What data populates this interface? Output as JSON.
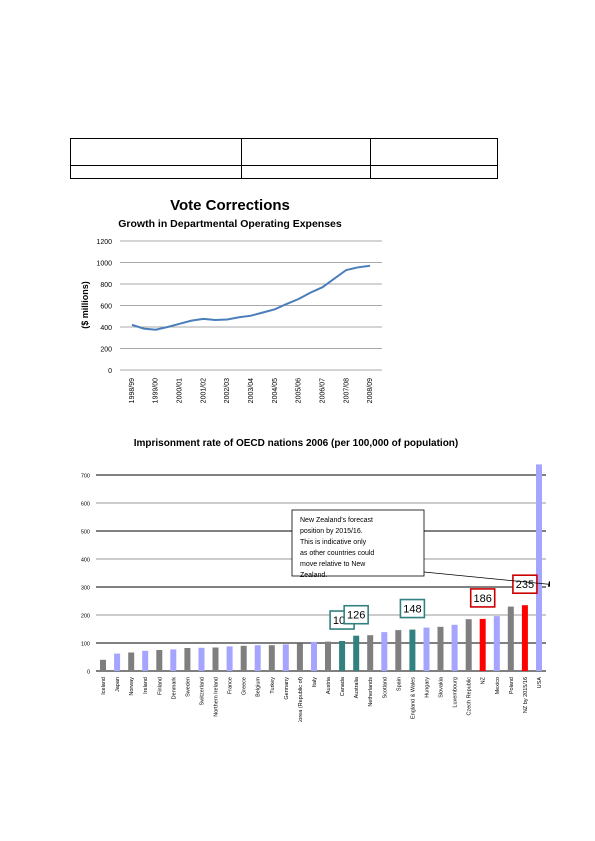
{
  "chart_data": [
    {
      "type": "line",
      "title": "Vote Corrections",
      "subtitle": "Growth in Departmental Operating Expenses",
      "xlabel": "",
      "ylabel": "($ millions)",
      "ylim": [
        0,
        1200
      ],
      "yticks": [
        0,
        200,
        400,
        600,
        800,
        1000,
        1200
      ],
      "grid": true,
      "categories": [
        "1998/99",
        "1999/00",
        "2000/01",
        "2001/02",
        "2002/03",
        "2003/04",
        "2004/05",
        "2005/06",
        "2006/07",
        "2007/08",
        "2008/09"
      ],
      "series": [
        {
          "name": "",
          "x": [
            0,
            0.5,
            1,
            1.5,
            2,
            2.5,
            3,
            3.5,
            4,
            4.5,
            5,
            5.5,
            6,
            6.5,
            7,
            7.5,
            8,
            8.5,
            9,
            9.5,
            10
          ],
          "values": [
            420,
            385,
            375,
            400,
            430,
            460,
            475,
            465,
            470,
            490,
            505,
            535,
            565,
            615,
            660,
            720,
            770,
            850,
            930,
            955,
            970
          ],
          "color": "#4a7ebb"
        }
      ]
    },
    {
      "type": "bar",
      "title": "Imprisonment rate of OECD nations 2006 (per 100,000 of population)",
      "ylim": [
        0,
        750
      ],
      "yticks": [
        0,
        100,
        200,
        300,
        400,
        500,
        600,
        700
      ],
      "grid": true,
      "categories": [
        "Iceland",
        "Japan",
        "Norway",
        "Ireland",
        "Finland",
        "Denmark",
        "Sweden",
        "Switzerland",
        "Northern Ireland",
        "France",
        "Greece",
        "Belgium",
        "Turkey",
        "Germany",
        "Korea (Republic of)",
        "Italy",
        "Austria",
        "Canada",
        "Australia",
        "Netherlands",
        "Scotland",
        "Spain",
        "England & Wales",
        "Hungary",
        "Slovakia",
        "Luxembourg",
        "Czech Republic",
        "NZ",
        "Mexico",
        "Poland",
        "NZ by 2015/16",
        "USA"
      ],
      "values": [
        40,
        62,
        66,
        72,
        75,
        77,
        82,
        83,
        84,
        88,
        90,
        92,
        92,
        95,
        97,
        104,
        105,
        107,
        126,
        128,
        139,
        146,
        148,
        155,
        158,
        165,
        185,
        186,
        196,
        230,
        235,
        738
      ],
      "colors": [
        "#7f7f7f",
        "#a5a5ff",
        "#7f7f7f",
        "#a5a5ff",
        "#7f7f7f",
        "#a5a5ff",
        "#7f7f7f",
        "#a5a5ff",
        "#7f7f7f",
        "#a5a5ff",
        "#7f7f7f",
        "#a5a5ff",
        "#7f7f7f",
        "#a5a5ff",
        "#7f7f7f",
        "#a5a5ff",
        "#7f7f7f",
        "#338080",
        "#338080",
        "#7f7f7f",
        "#a5a5ff",
        "#7f7f7f",
        "#338080",
        "#a5a5ff",
        "#7f7f7f",
        "#a5a5ff",
        "#7f7f7f",
        "#ff0000",
        "#a5a5ff",
        "#7f7f7f",
        "#ff0000",
        "#a5a5ff"
      ],
      "highlight_labels": [
        {
          "category": "Canada",
          "label": "107",
          "border": "#338080"
        },
        {
          "category": "Australia",
          "label": "126",
          "border": "#338080"
        },
        {
          "category": "England & Wales",
          "label": "148",
          "border": "#338080"
        },
        {
          "category": "NZ",
          "label": "186",
          "border": "#cc0000"
        },
        {
          "category": "NZ by 2015/16",
          "label": "235",
          "border": "#cc0000"
        }
      ],
      "annotation": "New Zealand's forecast position by 2015/16. This is indicative only as other countries could move relative to New Zealand."
    }
  ]
}
